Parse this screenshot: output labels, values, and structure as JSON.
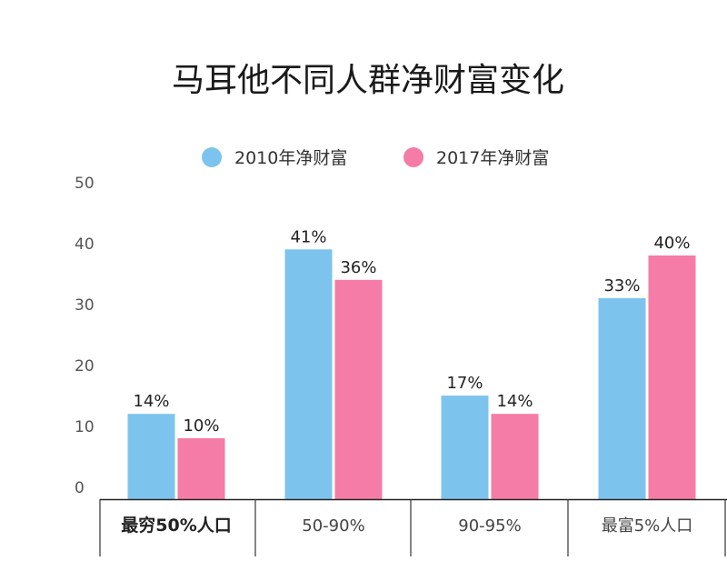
{
  "chart_data": {
    "type": "bar",
    "title": "马耳他不同人群净财富变化",
    "categories": [
      "最穷50%人口",
      "50-90%",
      "90-95%",
      "最富5%人口"
    ],
    "series": [
      {
        "name": "2010年净财富",
        "color": "#7cc4ee",
        "values": [
          14,
          41,
          17,
          33
        ],
        "labels": [
          "14%",
          "41%",
          "17%",
          "33%"
        ]
      },
      {
        "name": "2017年净财富",
        "color": "#f57ca6",
        "values": [
          10,
          36,
          14,
          40
        ],
        "labels": [
          "10%",
          "36%",
          "14%",
          "40%"
        ]
      }
    ],
    "ylim": [
      0,
      50
    ],
    "yticks": [
      "0",
      "10",
      "20",
      "30",
      "40",
      "50"
    ],
    "xlabel": "",
    "ylabel": "",
    "legend_position": "top-center",
    "grid": false
  }
}
